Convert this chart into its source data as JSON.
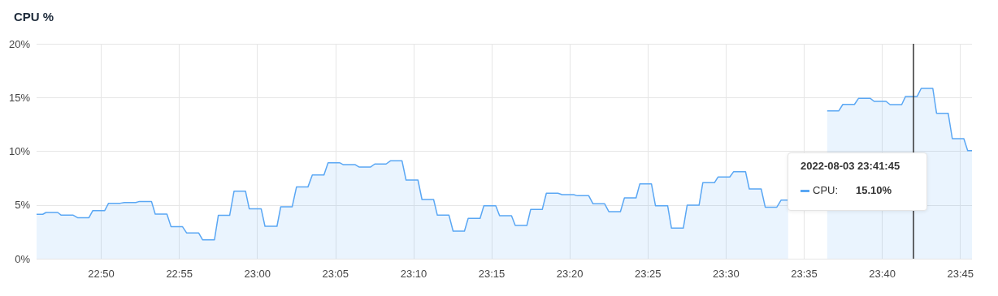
{
  "chart_data": {
    "type": "area",
    "title": "CPU %",
    "xlim": [
      22.7644,
      23.7624
    ],
    "xticks": [
      {
        "value": 22.8333,
        "label": "22:50"
      },
      {
        "value": 22.9167,
        "label": "22:55"
      },
      {
        "value": 23,
        "label": "23:00"
      },
      {
        "value": 23.0833,
        "label": "23:05"
      },
      {
        "value": 23.1667,
        "label": "23:10"
      },
      {
        "value": 23.25,
        "label": "23:15"
      },
      {
        "value": 23.3333,
        "label": "23:20"
      },
      {
        "value": 23.4167,
        "label": "23:25"
      },
      {
        "value": 23.5,
        "label": "23:30"
      },
      {
        "value": 23.5833,
        "label": "23:35"
      },
      {
        "value": 23.6667,
        "label": "23:40"
      },
      {
        "value": 23.75,
        "label": "23:45"
      }
    ],
    "ylim": [
      0,
      20
    ],
    "yticks": [
      {
        "value": 0,
        "label": "0%"
      },
      {
        "value": 5,
        "label": "5%"
      },
      {
        "value": 10,
        "label": "10%"
      },
      {
        "value": 15,
        "label": "15%"
      },
      {
        "value": 20,
        "label": "20%"
      }
    ],
    "grid": true,
    "series": [
      {
        "color": "#5aa7f4",
        "x": [
          22.7644,
          22.771,
          22.7745,
          22.787,
          22.7907,
          22.8035,
          22.8081,
          22.8203,
          22.8244,
          22.8371,
          22.8412,
          22.8536,
          22.858,
          22.8702,
          22.8742,
          22.887,
          22.891,
          22.9035,
          22.9078,
          22.92,
          22.9246,
          22.9374,
          22.9415,
          22.9542,
          22.9583,
          22.9704,
          22.9751,
          22.9873,
          22.9913,
          23.004,
          23.0081,
          23.0209,
          23.0249,
          23.0371,
          23.0417,
          23.0539,
          23.0586,
          23.071,
          23.0754,
          23.0877,
          23.0917,
          23.1044,
          23.1084,
          23.1208,
          23.1252,
          23.1373,
          23.1419,
          23.1543,
          23.1586,
          23.1713,
          23.1756,
          23.188,
          23.192,
          23.2044,
          23.2088,
          23.2209,
          23.2249,
          23.2376,
          23.2416,
          23.2543,
          23.2584,
          23.2711,
          23.2751,
          23.2875,
          23.2915,
          23.3039,
          23.3083,
          23.3207,
          23.325,
          23.3374,
          23.3414,
          23.3535,
          23.3581,
          23.3705,
          23.3749,
          23.3873,
          23.3916,
          23.404,
          23.408,
          23.4204,
          23.4247,
          23.4377,
          23.4418,
          23.4544,
          23.4585,
          23.4712,
          23.4752,
          23.4876,
          23.4914,
          23.504,
          23.5081,
          23.5208,
          23.5248,
          23.5375,
          23.5418,
          23.5542,
          23.5588,
          23.5663,
          23.59,
          23.6079,
          23.6203,
          23.6246,
          23.637,
          23.6413,
          23.654,
          23.658,
          23.6707,
          23.675,
          23.6874,
          23.6915,
          23.7039,
          23.7082,
          23.7206,
          23.7246,
          23.737,
          23.7414,
          23.7537,
          23.7578,
          23.7624
        ],
        "values": [
          4.13,
          4.13,
          4.3,
          4.3,
          4.05,
          4.05,
          3.82,
          3.82,
          4.48,
          4.48,
          5.16,
          5.16,
          5.23,
          5.23,
          5.33,
          5.33,
          4.15,
          4.15,
          2.99,
          2.99,
          2.39,
          2.39,
          1.76,
          1.76,
          4.03,
          4.03,
          6.29,
          6.29,
          4.65,
          4.65,
          3.02,
          3.02,
          4.83,
          4.83,
          6.67,
          6.67,
          7.8,
          7.8,
          8.93,
          8.93,
          8.75,
          8.75,
          8.53,
          8.53,
          8.81,
          8.81,
          9.11,
          9.11,
          7.32,
          7.32,
          5.51,
          5.51,
          4.05,
          4.05,
          2.57,
          2.57,
          3.75,
          3.75,
          4.93,
          4.93,
          4.0,
          4.0,
          3.09,
          3.09,
          4.58,
          4.58,
          6.09,
          6.09,
          5.96,
          5.96,
          5.86,
          5.86,
          5.11,
          5.11,
          4.38,
          4.38,
          5.66,
          5.66,
          6.97,
          6.97,
          4.93,
          4.93,
          2.84,
          2.84,
          4.98,
          4.98,
          7.07,
          7.07,
          7.6,
          7.6,
          8.1,
          8.1,
          6.49,
          6.49,
          4.8,
          4.8,
          5.46,
          5.46,
          null,
          13.76,
          13.76,
          14.36,
          14.36,
          14.92,
          14.92,
          14.64,
          14.64,
          14.34,
          14.34,
          15.1,
          15.1,
          15.85,
          15.85,
          13.53,
          13.53,
          11.17,
          11.17,
          10.06,
          10.06
        ]
      }
    ],
    "ref_lines": [
      {
        "axis": "x",
        "value": 23.7,
        "color": "#333333"
      }
    ],
    "annotations": [
      "2022-08-03 23:41:45",
      "CPU:",
      "15.10%"
    ]
  }
}
